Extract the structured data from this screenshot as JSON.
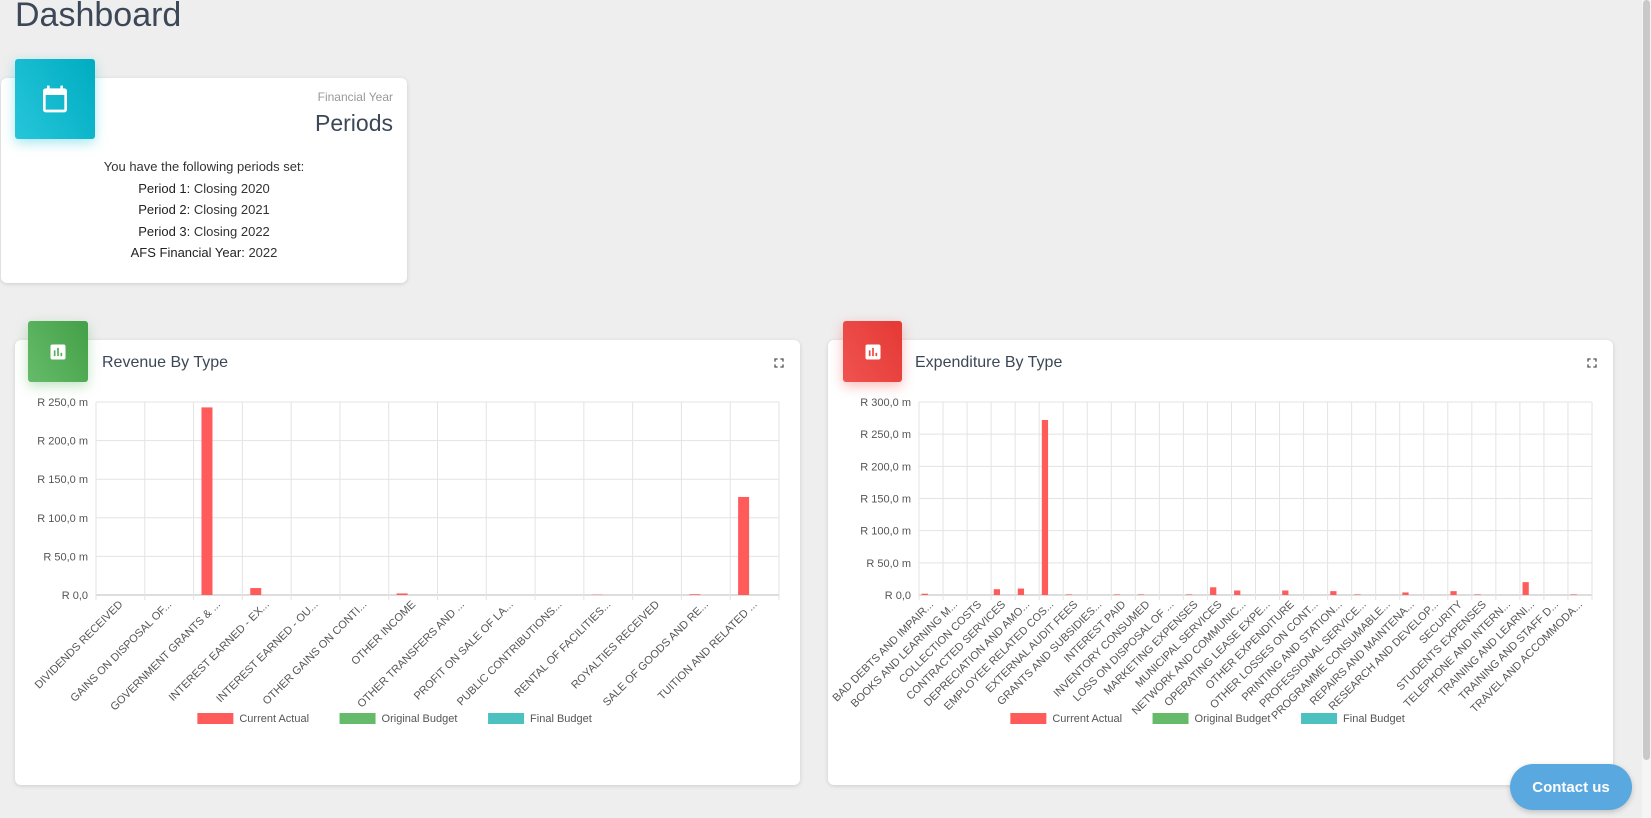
{
  "page": {
    "title": "Dashboard"
  },
  "periods_card": {
    "category": "Financial Year",
    "title": "Periods",
    "intro": "You have the following periods set:",
    "rows": [
      {
        "label": "Period 1:",
        "value": "Closing 2020"
      },
      {
        "label": "Period 2:",
        "value": "Closing 2021"
      },
      {
        "label": "Period 3:",
        "value": "Closing 2022"
      },
      {
        "label": "AFS Financial Year:",
        "value": "2022"
      }
    ],
    "icon": "calendar-icon"
  },
  "revenue_card": {
    "title": "Revenue By Type",
    "icon": "bar-chart-icon",
    "expand_icon": "fullscreen-icon"
  },
  "expenditure_card": {
    "title": "Expenditure By Type",
    "icon": "bar-chart-icon",
    "expand_icon": "fullscreen-icon"
  },
  "contact": {
    "label": "Contact us"
  },
  "colors": {
    "current_actual": "#ff5b5b",
    "original_budget": "#66bb6a",
    "final_budget": "#4dc0c0",
    "cyan_tile": "#00acc1",
    "green_tile": "#4caf50",
    "red_tile": "#e53935"
  },
  "chart_data": [
    {
      "type": "bar",
      "title": "Revenue By Type",
      "categories": [
        "DIVIDENDS RECEIVED",
        "GAINS ON DISPOSAL OF...",
        "GOVERNMENT GRANTS & ...",
        "INTEREST EARNED - EX...",
        "INTEREST EARNED - OU...",
        "OTHER GAINS ON CONTI...",
        "OTHER INCOME",
        "OTHER TRANSFERS AND ...",
        "PROFIT ON SALE OF LA...",
        "PUBLIC CONTRIBUTIONS...",
        "RENTAL OF FACILITIES...",
        "ROYALTIES RECEIVED",
        "SALE OF GOODS AND RE...",
        "TUITION AND RELATED ..."
      ],
      "series": [
        {
          "name": "Current Actual",
          "values": [
            0,
            0,
            243,
            9,
            0,
            0,
            2,
            0,
            0,
            0,
            0.5,
            0,
            1,
            127
          ]
        },
        {
          "name": "Original Budget",
          "values": [
            0,
            0,
            0,
            0,
            0,
            0,
            0,
            0,
            0,
            0,
            0,
            0,
            0,
            0
          ]
        },
        {
          "name": "Final Budget",
          "values": [
            0,
            0,
            0,
            0,
            0,
            0,
            0,
            0,
            0,
            0,
            0,
            0,
            0,
            0
          ]
        }
      ],
      "ylim": [
        0,
        250
      ],
      "yticks": [
        "R 0,0",
        "R 50,0 m",
        "R 100,0 m",
        "R 150,0 m",
        "R 200,0 m",
        "R 250,0 m"
      ],
      "ylabel": "",
      "xlabel": "",
      "legend": "bottom",
      "grid": true
    },
    {
      "type": "bar",
      "title": "Expenditure By Type",
      "categories": [
        "BAD DEBTS AND IMPAIR...",
        "BOOKS AND LEARNING M...",
        "COLLECTION COSTS",
        "CONTRACTED SERVICES",
        "DEPRECIATION AND AMO...",
        "EMPLOYEE RELATED COS...",
        "EXTERNAL AUDIT FEES",
        "GRANTS AND SUBSIDIES...",
        "INTEREST PAID",
        "INVENTORY CONSUMED",
        "LOSS ON DISPOSAL OF ...",
        "MARKETING EXPENSES",
        "MUNICIPAL SERVICES",
        "NETWORK AND COMMUNIC...",
        "OPERATING LEASE EXPE...",
        "OTHER EXPENDITURE",
        "OTHER LOSSES ON CONT...",
        "PRINTING AND STATION...",
        "PROFESSIONAL SERVICE...",
        "PROGRAMME CONSUMABLE...",
        "REPAIRS AND MAINTENA...",
        "RESEARCH AND DEVELOP...",
        "SECURITY",
        "STUDENTS EXPENSES",
        "TELEPHONE AND INTERN...",
        "TRAINING  AND LEARNI...",
        "TRAINING AND STAFF D...",
        "TRAVEL AND ACCOMMODA..."
      ],
      "series": [
        {
          "name": "Current Actual",
          "values": [
            2,
            0,
            0,
            9,
            10,
            272,
            1,
            0,
            1,
            1,
            0,
            1,
            12,
            7,
            0,
            7,
            0,
            6,
            1,
            0,
            4,
            0,
            6,
            1,
            0,
            20,
            0,
            1
          ]
        },
        {
          "name": "Original Budget",
          "values": [
            0,
            0,
            0,
            0,
            0,
            0,
            0,
            0,
            0,
            0,
            0,
            0,
            0,
            0,
            0,
            0,
            0,
            0,
            0,
            0,
            0,
            0,
            0,
            0,
            0,
            0,
            0,
            0
          ]
        },
        {
          "name": "Final Budget",
          "values": [
            0,
            0,
            0,
            0,
            0,
            0,
            0,
            0,
            0,
            0,
            0,
            0,
            0,
            0,
            0,
            0,
            0,
            0,
            0,
            0,
            0,
            0,
            0,
            0,
            0,
            0,
            0,
            0
          ]
        }
      ],
      "ylim": [
        0,
        300
      ],
      "yticks": [
        "R 0,0",
        "R 50,0 m",
        "R 100,0 m",
        "R 150,0 m",
        "R 200,0 m",
        "R 250,0 m",
        "R 300,0 m"
      ],
      "ylabel": "",
      "xlabel": "",
      "legend": "bottom",
      "grid": true
    }
  ]
}
